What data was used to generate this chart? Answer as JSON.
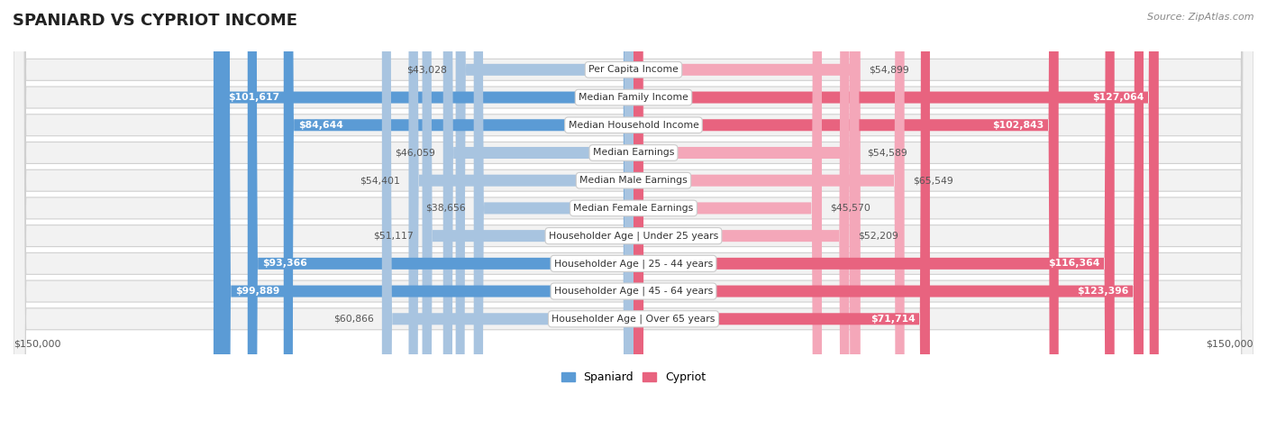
{
  "title": "SPANIARD VS CYPRIOT INCOME",
  "source": "Source: ZipAtlas.com",
  "categories": [
    "Per Capita Income",
    "Median Family Income",
    "Median Household Income",
    "Median Earnings",
    "Median Male Earnings",
    "Median Female Earnings",
    "Householder Age | Under 25 years",
    "Householder Age | 25 - 44 years",
    "Householder Age | 45 - 64 years",
    "Householder Age | Over 65 years"
  ],
  "spaniard_values": [
    43028,
    101617,
    84644,
    46059,
    54401,
    38656,
    51117,
    93366,
    99889,
    60866
  ],
  "cypriot_values": [
    54899,
    127064,
    102843,
    54589,
    65549,
    45570,
    52209,
    116364,
    123396,
    71714
  ],
  "spaniard_labels": [
    "$43,028",
    "$101,617",
    "$84,644",
    "$46,059",
    "$54,401",
    "$38,656",
    "$51,117",
    "$93,366",
    "$99,889",
    "$60,866"
  ],
  "cypriot_labels": [
    "$54,899",
    "$127,064",
    "$102,843",
    "$54,589",
    "$65,549",
    "$45,570",
    "$52,209",
    "$116,364",
    "$123,396",
    "$71,714"
  ],
  "spaniard_color_light": "#a8c4e0",
  "spaniard_color_dark": "#5b9bd5",
  "cypriot_color_light": "#f4a7b9",
  "cypriot_color_dark": "#e8637f",
  "max_value": 150000,
  "large_threshold": 70000,
  "background_color": "#ffffff",
  "row_bg_color": "#f2f2f2",
  "row_border_color": "#d0d0d0",
  "legend_spaniard": "Spaniard",
  "legend_cypriot": "Cypriot",
  "title_fontsize": 13,
  "label_fontsize": 7.8,
  "value_fontsize": 7.8,
  "axis_label_fontsize": 8
}
